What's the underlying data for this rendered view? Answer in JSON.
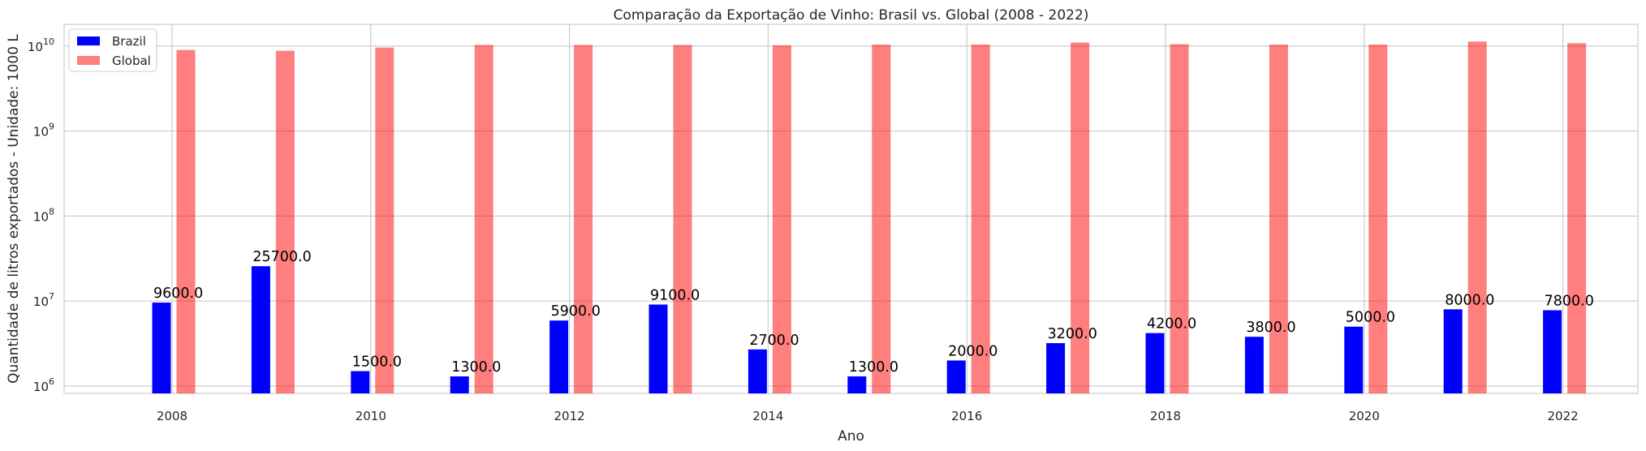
{
  "chart_data": {
    "type": "bar",
    "title": "Comparação da Exportação de Vinho: Brasil vs. Global (2008 - 2022)",
    "xlabel": "Ano",
    "ylabel": "Quantidade de litros exportados - Unidade: 1000 L",
    "y_scale": "log",
    "ylim": [
      820000,
      18000000000
    ],
    "grid": true,
    "legend_position": "top-left",
    "categories": [
      2008,
      2009,
      2010,
      2011,
      2012,
      2013,
      2014,
      2015,
      2016,
      2017,
      2018,
      2019,
      2020,
      2021,
      2022
    ],
    "x_ticks": [
      "2008",
      "2010",
      "2012",
      "2014",
      "2016",
      "2018",
      "2020",
      "2022"
    ],
    "y_ticks": [
      {
        "value": 1000000,
        "base": "10",
        "exp": "6"
      },
      {
        "value": 10000000,
        "base": "10",
        "exp": "7"
      },
      {
        "value": 100000000,
        "base": "10",
        "exp": "8"
      },
      {
        "value": 1000000000,
        "base": "10",
        "exp": "9"
      },
      {
        "value": 10000000000,
        "base": "10",
        "exp": "10"
      }
    ],
    "series": [
      {
        "name": "Brazil",
        "color": "#0000ff",
        "values": [
          9600000,
          25700000,
          1500000,
          1300000,
          5900000,
          9100000,
          2700000,
          1300000,
          2000000,
          3200000,
          4200000,
          3800000,
          5000000,
          8000000,
          7800000
        ],
        "labels": [
          "9600.0",
          "25700.0",
          "1500.0",
          "1300.0",
          "5900.0",
          "9100.0",
          "2700.0",
          "1300.0",
          "2000.0",
          "3200.0",
          "4200.0",
          "3800.0",
          "5000.0",
          "8000.0",
          "7800.0"
        ]
      },
      {
        "name": "Global",
        "color": "#ff7f7f",
        "values": [
          9000000000,
          8800000000,
          9600000000,
          10300000000,
          10300000000,
          10300000000,
          10200000000,
          10400000000,
          10400000000,
          11000000000,
          10500000000,
          10400000000,
          10400000000,
          11300000000,
          10800000000
        ]
      }
    ]
  }
}
